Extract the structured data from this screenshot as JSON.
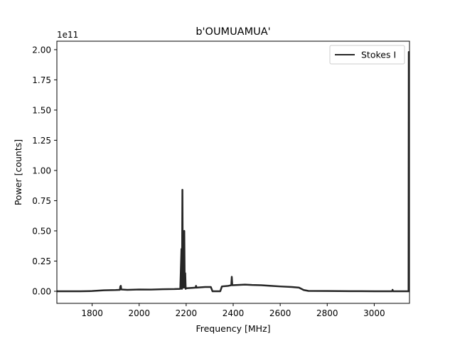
{
  "chart_data": {
    "type": "line",
    "title": "b'OUMUAMUA'",
    "xlabel": "Frequency [MHz]",
    "ylabel": "Power [counts]",
    "y_offset_label": "1e11",
    "y_scale": 100000000000,
    "xlim": [
      1650,
      3150
    ],
    "ylim": [
      -0.1,
      2.07
    ],
    "xticks": [
      1800,
      2000,
      2200,
      2400,
      2600,
      2800,
      3000
    ],
    "yticks": [
      0.0,
      0.25,
      0.5,
      0.75,
      1.0,
      1.25,
      1.5,
      1.75,
      2.0
    ],
    "grid": false,
    "legend": {
      "position": "top-right",
      "entries": [
        "Stokes I"
      ]
    },
    "series": [
      {
        "name": "Stokes I",
        "color": "#262626",
        "points": [
          [
            1650,
            0.0
          ],
          [
            1750,
            0.0
          ],
          [
            1800,
            0.002
          ],
          [
            1850,
            0.008
          ],
          [
            1900,
            0.01
          ],
          [
            1918,
            0.012
          ],
          [
            1920,
            0.04
          ],
          [
            1922,
            0.045
          ],
          [
            1924,
            0.015
          ],
          [
            1950,
            0.012
          ],
          [
            2000,
            0.015
          ],
          [
            2050,
            0.014
          ],
          [
            2100,
            0.017
          ],
          [
            2150,
            0.018
          ],
          [
            2175,
            0.02
          ],
          [
            2180,
            0.35
          ],
          [
            2182,
            0.02
          ],
          [
            2184,
            0.84
          ],
          [
            2186,
            0.03
          ],
          [
            2188,
            0.25
          ],
          [
            2190,
            0.03
          ],
          [
            2192,
            0.5
          ],
          [
            2194,
            0.03
          ],
          [
            2196,
            0.15
          ],
          [
            2198,
            0.02
          ],
          [
            2200,
            0.025
          ],
          [
            2240,
            0.03
          ],
          [
            2242,
            0.045
          ],
          [
            2244,
            0.03
          ],
          [
            2280,
            0.035
          ],
          [
            2305,
            0.035
          ],
          [
            2312,
            0.0
          ],
          [
            2345,
            0.0
          ],
          [
            2352,
            0.04
          ],
          [
            2380,
            0.045
          ],
          [
            2392,
            0.05
          ],
          [
            2394,
            0.12
          ],
          [
            2396,
            0.05
          ],
          [
            2420,
            0.052
          ],
          [
            2450,
            0.055
          ],
          [
            2480,
            0.052
          ],
          [
            2520,
            0.05
          ],
          [
            2560,
            0.045
          ],
          [
            2600,
            0.04
          ],
          [
            2650,
            0.035
          ],
          [
            2680,
            0.03
          ],
          [
            2700,
            0.01
          ],
          [
            2720,
            0.003
          ],
          [
            2800,
            0.002
          ],
          [
            2900,
            0.001
          ],
          [
            3000,
            0.0
          ],
          [
            3076,
            0.0
          ],
          [
            3078,
            0.012
          ],
          [
            3080,
            0.0
          ],
          [
            3140,
            0.0
          ],
          [
            3146,
            0.0
          ],
          [
            3147,
            1.98
          ],
          [
            3148,
            1.98
          ],
          [
            3149,
            0.0
          ],
          [
            3150,
            0.0
          ]
        ]
      }
    ]
  }
}
